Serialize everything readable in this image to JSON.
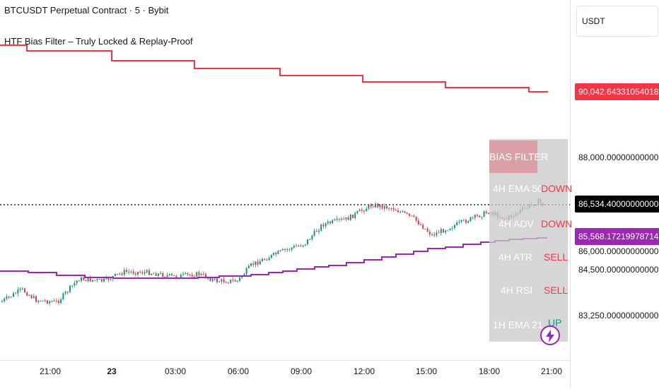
{
  "header": {
    "title": "BTCUSDT Perpetual Contract · 5 · Bybit",
    "indicator": "HTF Bias Filter – Truly Locked & Replay-Proof"
  },
  "price_axis": {
    "currency": "USDT",
    "ticks": [
      "88,000.0000000000000",
      "86,000.0000000000000",
      "84,500.0000000000000",
      "83,250.0000000000000"
    ],
    "labels": {
      "red": "90,042.6433105401856",
      "current": "86,534.4000000000000",
      "purple": "85,568.1721997871488"
    }
  },
  "time_axis": {
    "ticks": [
      "21:00",
      "23",
      "03:00",
      "06:00",
      "09:00",
      "12:00",
      "15:00",
      "18:00",
      "21:00"
    ]
  },
  "bias_table": {
    "header": "BIAS FILTER",
    "rows": [
      {
        "label": "4H EMA 50",
        "value": "DOWN",
        "color": "#f23645"
      },
      {
        "label": "4H ADV",
        "value": "DOWN",
        "color": "#f23645"
      },
      {
        "label": "4H ATR",
        "value": "SELL",
        "color": "#f23645"
      },
      {
        "label": "4H RSI",
        "value": "SELL",
        "color": "#f23645"
      },
      {
        "label": "1H EMA 21",
        "value": "UP",
        "color": "#089981"
      }
    ]
  },
  "colors": {
    "up": "#089981",
    "down": "#f23645",
    "htf_upper": "#f23645",
    "htf_lower": "#9c27b0",
    "current_price": "#000000"
  },
  "icons": [
    "lightning-icon"
  ]
}
